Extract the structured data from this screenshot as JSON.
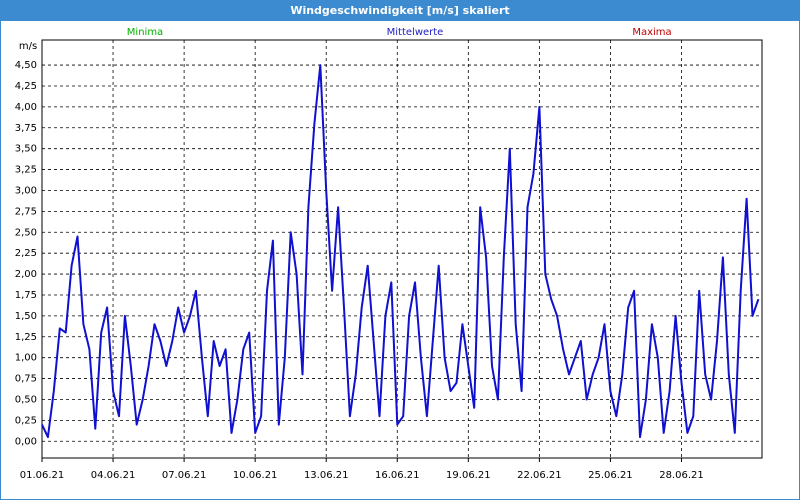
{
  "chart_data": {
    "type": "line",
    "title": "Windgeschwindigkeit [m/s] skaliert",
    "y_label": "m/s",
    "legend": [
      {
        "name": "Minima",
        "color": "#00b000"
      },
      {
        "name": "Mittelwerte",
        "color": "#2020c0"
      },
      {
        "name": "Maxima",
        "color": "#c00000"
      }
    ],
    "grid": true,
    "xlim": [
      1,
      31.4
    ],
    "ylim": [
      -0.2,
      4.8
    ],
    "xticks": [
      {
        "value": 1,
        "label": "01.06.21"
      },
      {
        "value": 4,
        "label": "04.06.21"
      },
      {
        "value": 7,
        "label": "07.06.21"
      },
      {
        "value": 10,
        "label": "10.06.21"
      },
      {
        "value": 13,
        "label": "13.06.21"
      },
      {
        "value": 16,
        "label": "16.06.21"
      },
      {
        "value": 19,
        "label": "19.06.21"
      },
      {
        "value": 22,
        "label": "22.06.21"
      },
      {
        "value": 25,
        "label": "25.06.21"
      },
      {
        "value": 28,
        "label": "28.06.21"
      }
    ],
    "yticks": [
      {
        "value": 0,
        "label": "0,00"
      },
      {
        "value": 0.25,
        "label": "0,25"
      },
      {
        "value": 0.5,
        "label": "0,50"
      },
      {
        "value": 0.75,
        "label": "0,75"
      },
      {
        "value": 1,
        "label": "1,00"
      },
      {
        "value": 1.25,
        "label": "1,25"
      },
      {
        "value": 1.5,
        "label": "1,50"
      },
      {
        "value": 1.75,
        "label": "1,75"
      },
      {
        "value": 2,
        "label": "2,00"
      },
      {
        "value": 2.25,
        "label": "2,25"
      },
      {
        "value": 2.5,
        "label": "2,50"
      },
      {
        "value": 2.75,
        "label": "2,75"
      },
      {
        "value": 3,
        "label": "3,00"
      },
      {
        "value": 3.25,
        "label": "3,25"
      },
      {
        "value": 3.5,
        "label": "3,50"
      },
      {
        "value": 3.75,
        "label": "3,75"
      },
      {
        "value": 4,
        "label": "4,00"
      },
      {
        "value": 4.25,
        "label": "4,25"
      },
      {
        "value": 4.5,
        "label": "4,50"
      }
    ],
    "x": [
      1,
      1.25,
      1.5,
      1.75,
      2,
      2.25,
      2.5,
      2.75,
      3,
      3.25,
      3.5,
      3.75,
      4,
      4.25,
      4.5,
      4.75,
      5,
      5.25,
      5.5,
      5.75,
      6,
      6.25,
      6.5,
      6.75,
      7,
      7.25,
      7.5,
      7.75,
      8,
      8.25,
      8.5,
      8.75,
      9,
      9.25,
      9.5,
      9.75,
      10,
      10.25,
      10.5,
      10.75,
      11,
      11.25,
      11.5,
      11.75,
      12,
      12.25,
      12.5,
      12.75,
      13,
      13.25,
      13.5,
      13.75,
      14,
      14.25,
      14.5,
      14.75,
      15,
      15.25,
      15.5,
      15.75,
      16,
      16.25,
      16.5,
      16.75,
      17,
      17.25,
      17.5,
      17.75,
      18,
      18.25,
      18.5,
      18.75,
      19,
      19.25,
      19.5,
      19.75,
      20,
      20.25,
      20.5,
      20.75,
      21,
      21.25,
      21.5,
      21.75,
      22,
      22.25,
      22.5,
      22.75,
      23,
      23.25,
      23.5,
      23.75,
      24,
      24.25,
      24.5,
      24.75,
      25,
      25.25,
      25.5,
      25.75,
      26,
      26.25,
      26.5,
      26.75,
      27,
      27.25,
      27.5,
      27.75,
      28,
      28.25,
      28.5,
      28.75,
      29,
      29.25,
      29.5,
      29.75,
      30,
      30.25,
      30.5,
      30.75,
      31,
      31.25
    ],
    "series": [
      {
        "name": "Mittelwerte",
        "color": "#1010d0",
        "values": [
          0.2,
          0.05,
          0.6,
          1.35,
          1.3,
          2.1,
          2.45,
          1.4,
          1.1,
          0.15,
          1.3,
          1.6,
          0.6,
          0.3,
          1.5,
          0.9,
          0.2,
          0.5,
          0.9,
          1.4,
          1.2,
          0.9,
          1.2,
          1.6,
          1.3,
          1.5,
          1.8,
          1.0,
          0.3,
          1.2,
          0.9,
          1.1,
          0.1,
          0.5,
          1.1,
          1.3,
          0.1,
          0.3,
          1.8,
          2.4,
          0.2,
          1.0,
          2.5,
          2.0,
          0.8,
          2.8,
          3.8,
          4.5,
          3.0,
          1.8,
          2.8,
          1.6,
          0.3,
          0.8,
          1.6,
          2.1,
          1.2,
          0.3,
          1.5,
          1.9,
          0.2,
          0.3,
          1.5,
          1.9,
          1.0,
          0.3,
          1.2,
          2.1,
          1.0,
          0.6,
          0.7,
          1.4,
          0.9,
          0.4,
          2.8,
          2.2,
          0.9,
          0.5,
          2.2,
          3.5,
          1.4,
          0.6,
          2.8,
          3.2,
          4.0,
          2.0,
          1.7,
          1.5,
          1.1,
          0.8,
          1.0,
          1.2,
          0.5,
          0.8,
          1.0,
          1.4,
          0.6,
          0.3,
          0.8,
          1.6,
          1.8,
          0.05,
          0.5,
          1.4,
          1.0,
          0.1,
          0.6,
          1.5,
          0.7,
          0.1,
          0.3,
          1.8,
          0.8,
          0.5,
          1.2,
          2.2,
          0.8,
          0.1,
          1.8,
          2.9,
          1.5,
          1.7
        ]
      }
    ]
  }
}
